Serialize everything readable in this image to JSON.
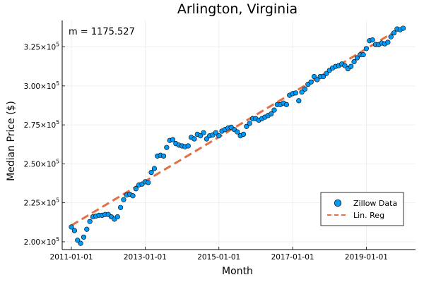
{
  "chart_data": {
    "type": "scatter",
    "title": "Arlington, Virginia",
    "xlabel": "Month",
    "ylabel": "Median Price ($)",
    "annotation": "m = 1175.527",
    "x_axis": {
      "type": "date",
      "range": [
        "2010-10-01",
        "2020-05-01"
      ]
    },
    "y_axis": {
      "range": [
        195000,
        342000
      ]
    },
    "x_ticks": [
      "2011-01-01",
      "2013-01-01",
      "2015-01-01",
      "2017-01-01",
      "2019-01-01"
    ],
    "y_ticks": [
      {
        "value": 200000,
        "mantissa": "2.00",
        "exp": "5"
      },
      {
        "value": 225000,
        "mantissa": "2.25",
        "exp": "5"
      },
      {
        "value": 250000,
        "mantissa": "2.50",
        "exp": "5"
      },
      {
        "value": 275000,
        "mantissa": "2.75",
        "exp": "5"
      },
      {
        "value": 300000,
        "mantissa": "3.00",
        "exp": "5"
      },
      {
        "value": 325000,
        "mantissa": "3.25",
        "exp": "5"
      }
    ],
    "grid": true,
    "legend_position": "bottom-right",
    "series": [
      {
        "name": "Zillow Data",
        "kind": "scatter",
        "color": "#009af9",
        "start_date": "2011-01-01",
        "step": "1 month",
        "values": [
          209500,
          207200,
          201000,
          199000,
          203000,
          208000,
          213000,
          216000,
          216500,
          217000,
          217000,
          217500,
          217500,
          216000,
          214500,
          216000,
          222000,
          227000,
          230000,
          230500,
          229500,
          234000,
          236500,
          237000,
          238500,
          238000,
          244500,
          247000,
          255000,
          255500,
          255000,
          260500,
          265000,
          265500,
          263000,
          262000,
          261500,
          261000,
          261500,
          267000,
          266000,
          269000,
          268000,
          270000,
          266000,
          268000,
          268500,
          270000,
          268000,
          271000,
          272000,
          273000,
          273500,
          272000,
          270500,
          268000,
          269000,
          274000,
          276000,
          279000,
          279000,
          278000,
          279000,
          280000,
          281000,
          282000,
          284500,
          288000,
          288000,
          289000,
          288000,
          294000,
          295000,
          295500,
          290500,
          296000,
          298000,
          301000,
          302500,
          306000,
          304000,
          306000,
          306000,
          308000,
          310000,
          311500,
          312500,
          313000,
          314000,
          313000,
          311000,
          312500,
          315500,
          318000,
          320000,
          320000,
          324000,
          329000,
          329500,
          326500,
          326500,
          327500,
          327000,
          328000,
          331500,
          334000,
          336500,
          336000,
          337000
        ]
      },
      {
        "name": "Lin. Reg",
        "kind": "line",
        "color": "#e26f46",
        "dash": "dashed",
        "start": {
          "date": "2011-01-01",
          "value": 210500
        },
        "end": {
          "date": "2019-10-01",
          "value": 334500
        }
      }
    ]
  },
  "colors": {
    "background": "#ffffff",
    "grid": "#ebebeb",
    "axis": "#000000",
    "marker_stroke": "#000000"
  }
}
